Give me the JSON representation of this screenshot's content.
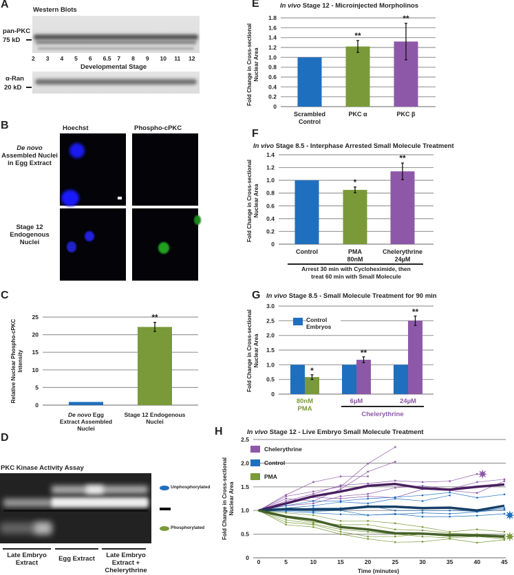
{
  "panels": {
    "A": {
      "label": "A",
      "title": "Western Blots",
      "top_blot": {
        "antibody": "pan-PKC",
        "marker": "75 kD"
      },
      "bottom_blot": {
        "antibody": "α-Ran",
        "marker": "20 kD"
      },
      "lanes": [
        "2",
        "3",
        "4",
        "5",
        "6",
        "6.5",
        "7",
        "8",
        "9",
        "10",
        "11",
        "12"
      ],
      "xlabel": "Developmental Stage"
    },
    "B": {
      "label": "B",
      "columns": [
        "Hoechst",
        "Phospho-cPKC"
      ],
      "rows": [
        {
          "label_italic": "De novo",
          "label": "Assembled Nuclei in Egg Extract"
        },
        {
          "label_italic": "",
          "label": "Stage 12 Endogenous Nuclei"
        }
      ],
      "colors": {
        "hoechst": "#1a1aff",
        "phospho": "#1fa01f"
      }
    },
    "C": {
      "label": "C"
    },
    "D": {
      "label": "D",
      "title": "PKC Kinase Activity Assay",
      "legend": [
        {
          "label": "Unphosphorylated",
          "color": "#1f6fbf"
        },
        {
          "label": "Phosphorylated",
          "color": "#7a9a3a"
        }
      ],
      "groups": [
        "Late Embryo Extract",
        "Egg Extract",
        "Late Embryo Extract + Chelerythrine"
      ]
    },
    "E": {
      "label": "E"
    },
    "F": {
      "label": "F",
      "bracket_label": "Arrest 30 min with Cycloheximide, then treat 60 min with Small Molecule"
    },
    "G": {
      "label": "G",
      "group_label": "Chelerythrine"
    },
    "H": {
      "label": "H"
    }
  },
  "chart_data": [
    {
      "id": "C",
      "type": "bar",
      "title": "",
      "ylabel": "Relative Nuclear Phospho-cPKC Intensity",
      "ylim": [
        0,
        25
      ],
      "yticks": [
        0,
        5,
        10,
        15,
        20,
        25
      ],
      "grid": true,
      "categories": [
        "De novo Egg Extract Assembled Nuclei",
        "Stage 12 Endogenous Nuclei"
      ],
      "category_italic": [
        "De novo",
        ""
      ],
      "values": [
        0.9,
        22.2
      ],
      "errors": [
        0,
        1.3
      ],
      "significance": [
        "",
        "**"
      ],
      "colors": [
        "#1f6fbf",
        "#7a9a3a"
      ]
    },
    {
      "id": "E",
      "type": "bar",
      "title_italic": "In vivo",
      "title": "Stage 12 - Microinjected Morpholinos",
      "ylabel": "Fold Change in Cross-sectional Nuclear Area",
      "ylim": [
        0,
        1.8
      ],
      "yticks": [
        "0",
        "0.2",
        "0.4",
        "0.6",
        "0.8",
        "1.0",
        "1.2",
        "1.4",
        "1.6",
        "1.8"
      ],
      "grid": true,
      "categories": [
        "Scrambled Control",
        "PKC α",
        "PKC β"
      ],
      "values": [
        1.0,
        1.22,
        1.32
      ],
      "errors": [
        0,
        0.12,
        0.37
      ],
      "significance": [
        "",
        "**",
        "**"
      ],
      "colors": [
        "#1f6fbf",
        "#7a9a3a",
        "#8e58a8"
      ]
    },
    {
      "id": "F",
      "type": "bar",
      "title_italic": "In vivo",
      "title": "Stage 8.5 - Interphase Arrested Small Molecule Treatment",
      "ylabel": "Fold Change in Cross-sectional Nuclear Area",
      "ylim": [
        0,
        1.4
      ],
      "yticks": [
        "0",
        "0.2",
        "0.4",
        "0.6",
        "0.8",
        "1.0",
        "1.2",
        "1.4"
      ],
      "grid": true,
      "categories": [
        "Control",
        "PMA 80nM",
        "Chelerythrine 24µM"
      ],
      "values": [
        1.0,
        0.85,
        1.14
      ],
      "errors": [
        0,
        0.045,
        0.13
      ],
      "significance": [
        "",
        "*",
        "**"
      ],
      "colors": [
        "#1f6fbf",
        "#7a9a3a",
        "#8e58a8"
      ]
    },
    {
      "id": "G",
      "type": "bar",
      "title_italic": "In vivo",
      "title": "Stage 8.5 - Small Molecule Treatment for 90 min",
      "ylabel": "Fold Change in Cross-sectional Nuclear Area",
      "ylim": [
        0,
        3.0
      ],
      "yticks": [
        "0",
        "0.5",
        "1.0",
        "1.5",
        "2.0",
        "2.5",
        "3.0"
      ],
      "grid": true,
      "legend": {
        "label": "Control Embryos",
        "color": "#1f6fbf",
        "placement": "top-left"
      },
      "categories": [
        "80nM PMA",
        "6µM",
        "24µM"
      ],
      "category_colors": [
        "#7a9a3a",
        "#8e58a8",
        "#8e58a8"
      ],
      "series": [
        {
          "name": "Control Embryos",
          "values": [
            1.0,
            1.0,
            1.0
          ],
          "errors": [
            0,
            0,
            0
          ],
          "color": "#1f6fbf"
        },
        {
          "values": [
            0.58,
            1.17,
            2.5
          ],
          "errors": [
            0.08,
            0.1,
            0.16
          ],
          "colors": [
            "#7a9a3a",
            "#8e58a8",
            "#8e58a8"
          ],
          "significance": [
            "*",
            "**",
            "**"
          ]
        }
      ]
    },
    {
      "id": "H",
      "type": "line",
      "title_italic": "In vivo",
      "title": "Stage 12 - Live Embryo Small Molecule Treatment",
      "xlabel": "Time (minutes)",
      "ylabel": "Fold Change in Cross-sectional Nuclear Area",
      "x": [
        0,
        5,
        10,
        15,
        20,
        25,
        30,
        35,
        40,
        45
      ],
      "xlim": [
        0,
        45
      ],
      "ylim": [
        0,
        2.5
      ],
      "yticks": [
        "0",
        "0.5",
        "1.0",
        "1.5",
        "2.0",
        "2.5"
      ],
      "grid": true,
      "legend_placement": "top-left",
      "series": [
        {
          "name": "Chelerythrine",
          "color": "#8e58a8",
          "mean_color": "#4a2060",
          "mean": [
            1,
            1.15,
            1.3,
            1.4,
            1.52,
            1.56,
            1.47,
            1.44,
            1.5,
            1.55
          ],
          "significance_marker": {
            "x": 41,
            "y": 1.77
          },
          "traces": [
            [
              1,
              1.33,
              1.6,
              1.72,
              1.72,
              null,
              null,
              null,
              null,
              null
            ],
            [
              1,
              1.3,
              1.4,
              1.5,
              1.99,
              2.34,
              null,
              null,
              null,
              null
            ],
            [
              1,
              1.25,
              1.2,
              1.45,
              1.82,
              2.03,
              null,
              null,
              null,
              null
            ],
            [
              1,
              1.2,
              1.35,
              1.53,
              1.57,
              1.63,
              1.6,
              1.62,
              1.77,
              null
            ],
            [
              1,
              1.1,
              1.15,
              1.3,
              1.35,
              1.48,
              1.52,
              1.45,
              1.6,
              1.66
            ],
            [
              1,
              1.15,
              1.28,
              1.25,
              1.3,
              1.27,
              1.45,
              1.42,
              1.37,
              1.62
            ]
          ]
        },
        {
          "name": "Control",
          "color": "#1f6fbf",
          "mean_color": "#163f66",
          "mean": [
            1,
            1.03,
            1.02,
            1.03,
            1.08,
            1.08,
            1.05,
            1.06,
            1.0,
            1.1
          ],
          "significance_marker": {
            "x": 46,
            "y": 0.9
          },
          "traces": [
            [
              1,
              1.1,
              1.2,
              1.2,
              1.25,
              1.28,
              1.32,
              1.38,
              1.27,
              1.34
            ],
            [
              1,
              1.05,
              1.1,
              1.18,
              1.15,
              1.25,
              1.2,
              1.32,
              null,
              null
            ],
            [
              1,
              1.0,
              0.98,
              1.0,
              0.9,
              0.92,
              0.95,
              0.93,
              0.97,
              1.02
            ],
            [
              1,
              0.98,
              0.95,
              0.92,
              0.9,
              0.93,
              0.87,
              0.87,
              0.89,
              0.93
            ],
            [
              1,
              1.02,
              1.05,
              1.05,
              1.1,
              1.0,
              1.0,
              1.0,
              0.98,
              1.05
            ]
          ]
        },
        {
          "name": "PMA",
          "color": "#7a9a3a",
          "mean_color": "#45602a",
          "mean": [
            1,
            0.87,
            0.8,
            0.65,
            0.6,
            0.52,
            0.51,
            0.48,
            0.47,
            0.45
          ],
          "significance_marker": {
            "x": 46,
            "y": 0.45
          },
          "traces": [
            [
              1,
              0.95,
              0.9,
              0.78,
              0.78,
              0.73,
              0.65,
              0.55,
              0.6,
              0.55
            ],
            [
              1,
              0.85,
              0.75,
              0.7,
              0.7,
              0.6,
              0.58,
              0.52,
              0.5,
              0.47
            ],
            [
              1,
              0.75,
              0.7,
              0.55,
              0.45,
              0.45,
              0.5,
              0.45,
              0.48,
              0.42
            ],
            [
              1,
              0.7,
              0.65,
              0.5,
              0.4,
              0.33,
              0.34,
              0.4,
              0.32,
              0.38
            ],
            [
              1,
              0.8,
              0.72,
              0.6,
              0.55,
              0.5,
              0.45,
              0.42,
              0.45,
              0.4
            ]
          ]
        }
      ]
    }
  ]
}
